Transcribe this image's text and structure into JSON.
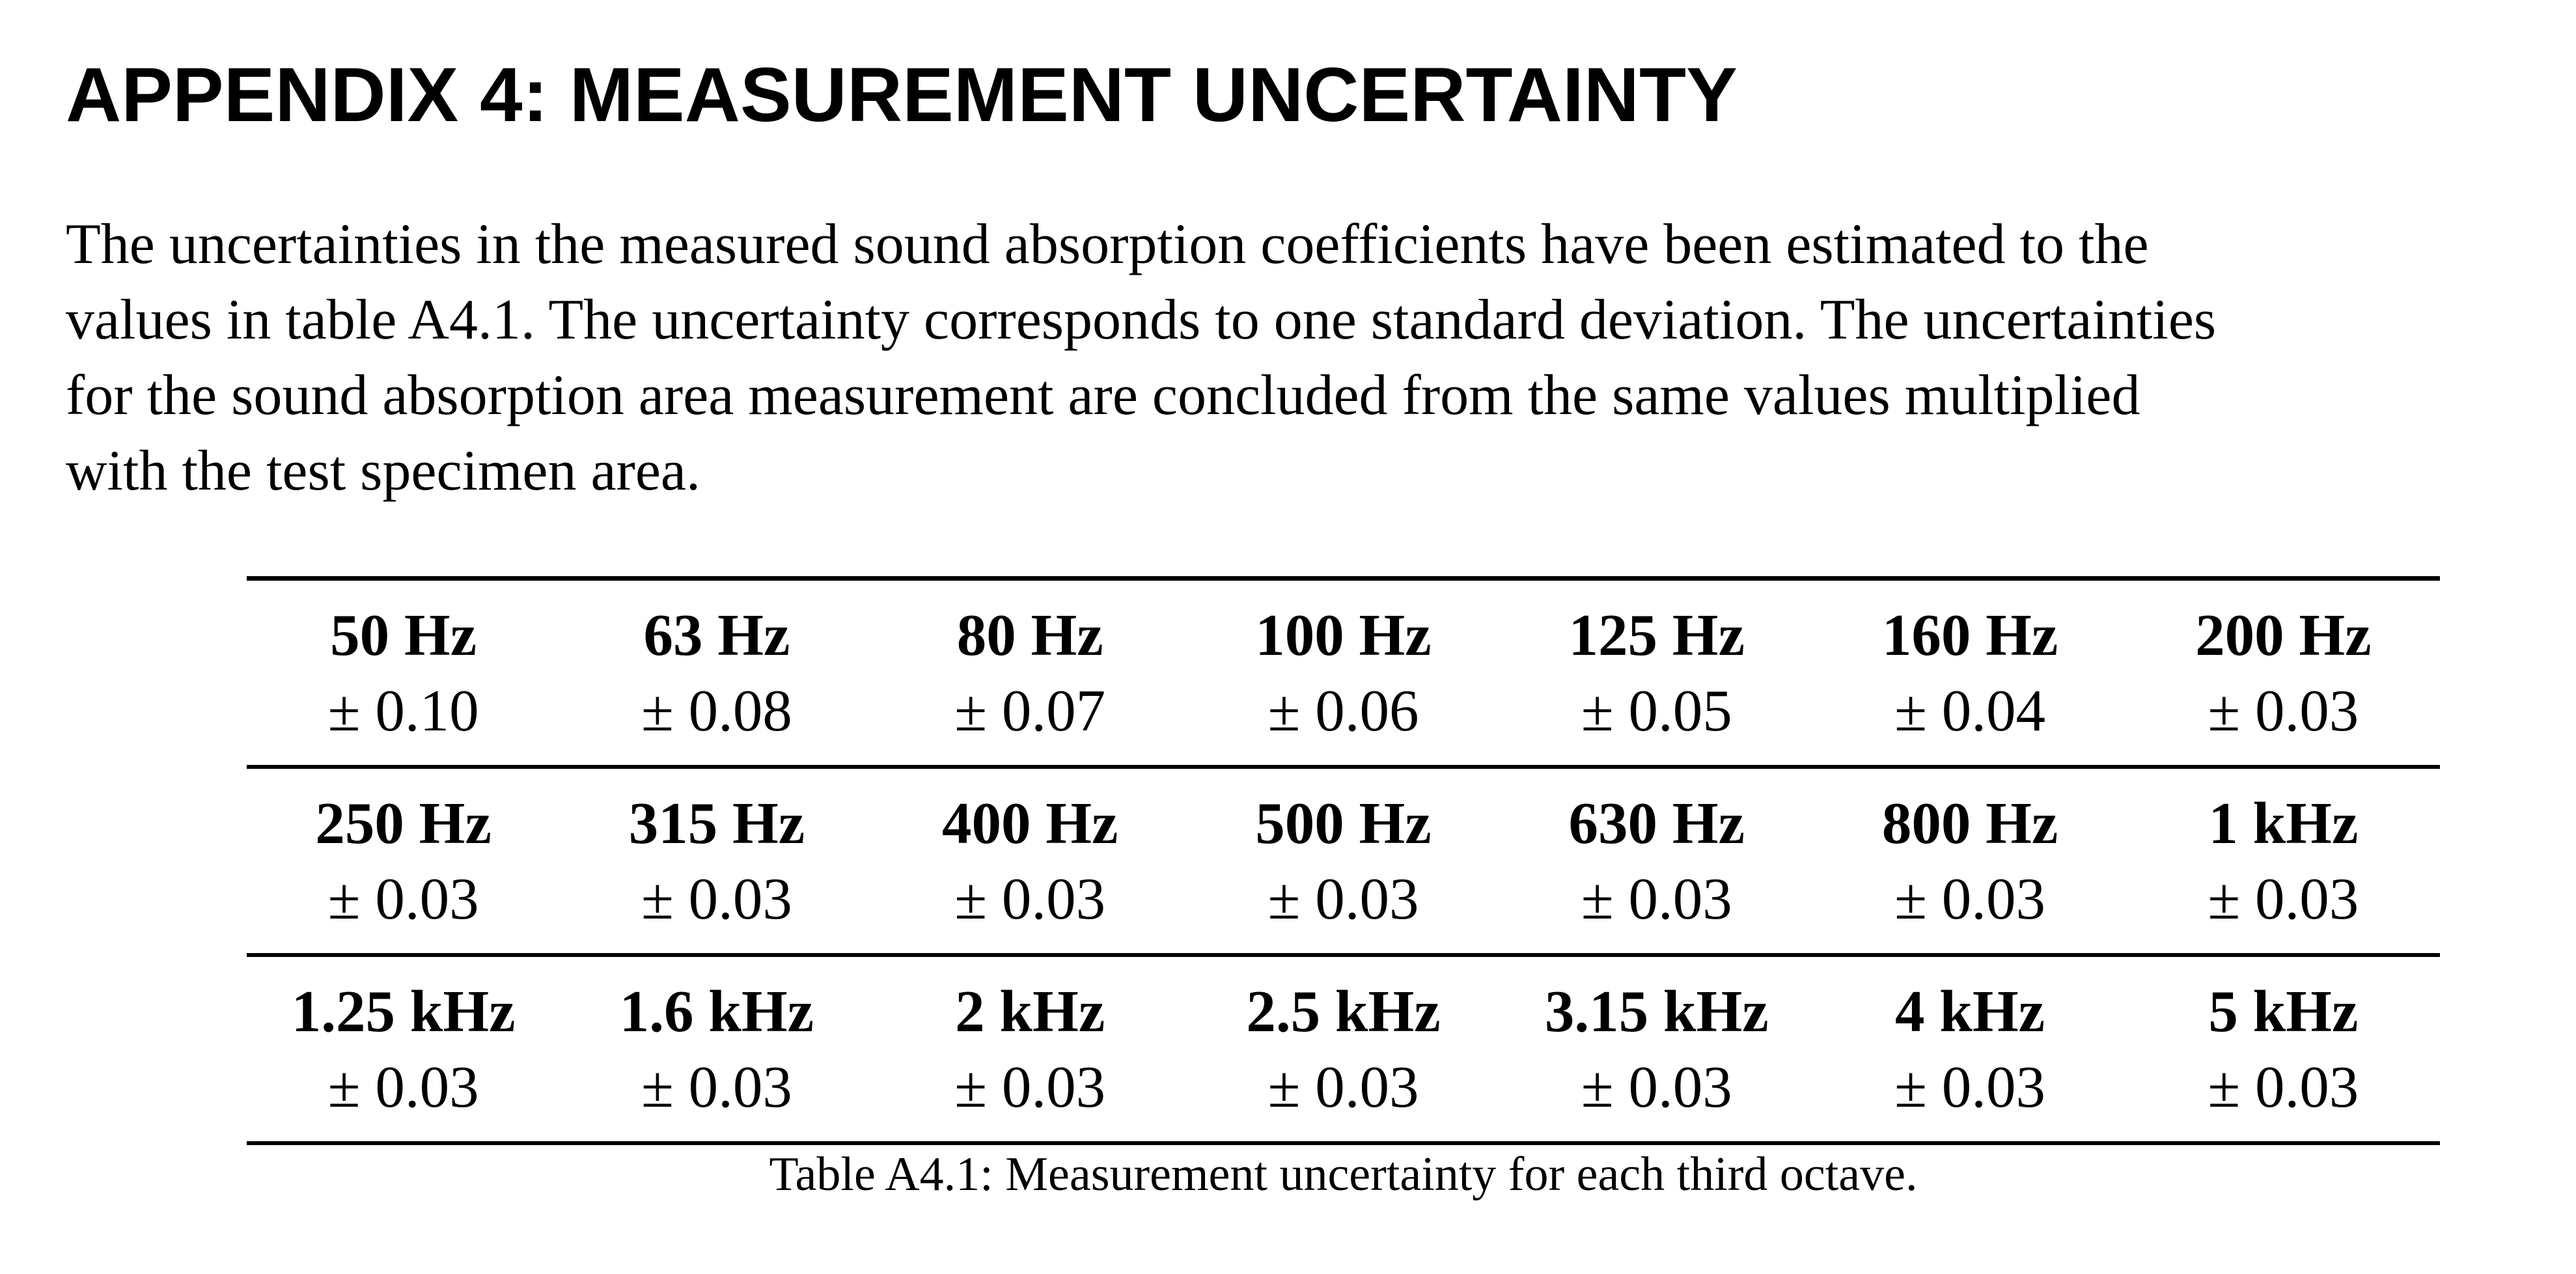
{
  "header": {
    "title": "APPENDIX 4: MEASUREMENT UNCERTAINTY"
  },
  "paragraph": {
    "lines": [
      "The uncertainties in the measured sound absorption coefficients have been estimated to the",
      "values in table A4.1. The uncertainty corresponds to one standard deviation. The uncertainties",
      "for the sound absorption area measurement are concluded from the same values multiplied",
      "with the test specimen area."
    ]
  },
  "table": {
    "rows": [
      [
        {
          "frequency": "50 Hz",
          "uncertainty": "± 0.10"
        },
        {
          "frequency": "63 Hz",
          "uncertainty": "± 0.08"
        },
        {
          "frequency": "80 Hz",
          "uncertainty": "± 0.07"
        },
        {
          "frequency": "100 Hz",
          "uncertainty": "± 0.06"
        },
        {
          "frequency": "125 Hz",
          "uncertainty": "± 0.05"
        },
        {
          "frequency": "160 Hz",
          "uncertainty": "± 0.04"
        },
        {
          "frequency": "200 Hz",
          "uncertainty": "± 0.03"
        }
      ],
      [
        {
          "frequency": "250 Hz",
          "uncertainty": "± 0.03"
        },
        {
          "frequency": "315 Hz",
          "uncertainty": "± 0.03"
        },
        {
          "frequency": "400 Hz",
          "uncertainty": "± 0.03"
        },
        {
          "frequency": "500 Hz",
          "uncertainty": "± 0.03"
        },
        {
          "frequency": "630 Hz",
          "uncertainty": "± 0.03"
        },
        {
          "frequency": "800 Hz",
          "uncertainty": "± 0.03"
        },
        {
          "frequency": "1 kHz",
          "uncertainty": "± 0.03"
        }
      ],
      [
        {
          "frequency": "1.25 kHz",
          "uncertainty": "± 0.03"
        },
        {
          "frequency": "1.6 kHz",
          "uncertainty": "± 0.03"
        },
        {
          "frequency": "2 kHz",
          "uncertainty": "± 0.03"
        },
        {
          "frequency": "2.5 kHz",
          "uncertainty": "± 0.03"
        },
        {
          "frequency": "3.15 kHz",
          "uncertainty": "± 0.03"
        },
        {
          "frequency": "4 kHz",
          "uncertainty": "± 0.03"
        },
        {
          "frequency": "5 kHz",
          "uncertainty": "± 0.03"
        }
      ]
    ],
    "caption": "Table A4.1: Measurement uncertainty for each third octave."
  }
}
